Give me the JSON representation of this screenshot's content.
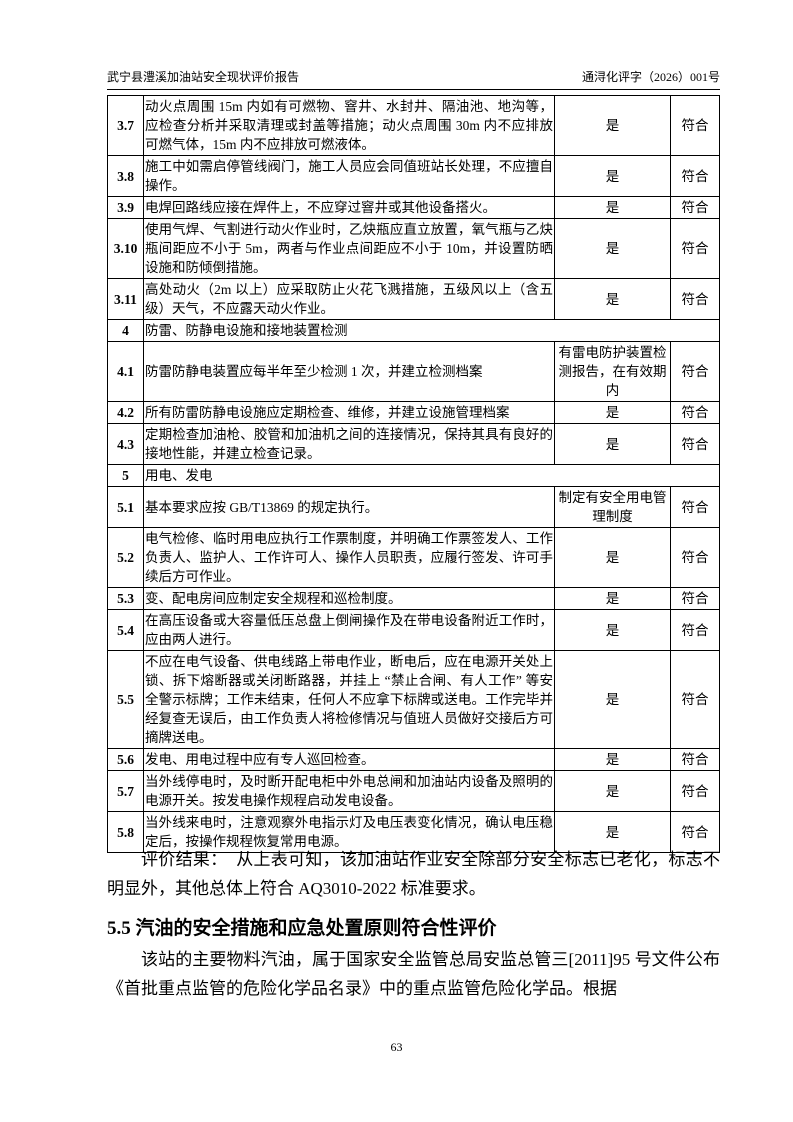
{
  "header": {
    "left": "武宁县澧溪加油站安全现状评价报告",
    "right": "通浔化评字（2026）001号"
  },
  "table": {
    "rows": [
      {
        "no": "3.7",
        "content": "动火点周围 15m 内如有可燃物、窨井、水封井、隔油池、地沟等，应检查分析并采取清理或封盖等措施；动火点周围 30m 内不应排放可燃气体，15m 内不应排放可燃液体。",
        "result": "是",
        "conclusion": "符合"
      },
      {
        "no": "3.8",
        "content": "施工中如需启停管线阀门，施工人员应会同值班站长处理，不应擅自操作。",
        "result": "是",
        "conclusion": "符合"
      },
      {
        "no": "3.9",
        "content": "电焊回路线应接在焊件上，不应穿过窨井或其他设备搭火。",
        "result": "是",
        "conclusion": "符合"
      },
      {
        "no": "3.10",
        "content": "使用气焊、气割进行动火作业时，乙炔瓶应直立放置，氧气瓶与乙炔瓶间距应不小于 5m，两者与作业点间距应不小于 10m，并设置防晒设施和防倾倒措施。",
        "result": "是",
        "conclusion": "符合"
      },
      {
        "no": "3.11",
        "content": "高处动火（2m 以上）应采取防止火花飞溅措施，五级风以上（含五级）天气，不应露天动火作业。",
        "result": "是",
        "conclusion": "符合"
      },
      {
        "no": "4",
        "content": "防雷、防静电设施和接地装置检测"
      },
      {
        "no": "4.1",
        "content": "防雷防静电装置应每半年至少检测 1 次，并建立检测档案",
        "result": "有雷电防护装置检测报告，在有效期内",
        "conclusion": "符合"
      },
      {
        "no": "4.2",
        "content": "所有防雷防静电设施应定期检查、维修，并建立设施管理档案",
        "result": "是",
        "conclusion": "符合"
      },
      {
        "no": "4.3",
        "content": "定期检查加油枪、胶管和加油机之间的连接情况，保持其具有良好的接地性能，并建立检查记录。",
        "result": "是",
        "conclusion": "符合"
      },
      {
        "no": "5",
        "content": "用电、发电"
      },
      {
        "no": "5.1",
        "content": "基本要求应按 GB/T13869 的规定执行。",
        "result": "制定有安全用电管理制度",
        "conclusion": "符合"
      },
      {
        "no": "5.2",
        "content": "电气检修、临时用电应执行工作票制度，并明确工作票签发人、工作负责人、监护人、工作许可人、操作人员职责，应履行签发、许可手续后方可作业。",
        "result": "是",
        "conclusion": "符合"
      },
      {
        "no": "5.3",
        "content": "变、配电房间应制定安全规程和巡检制度。",
        "result": "是",
        "conclusion": "符合"
      },
      {
        "no": "5.4",
        "content": "在高压设备或大容量低压总盘上倒闸操作及在带电设备附近工作时，应由两人进行。",
        "result": "是",
        "conclusion": "符合"
      },
      {
        "no": "5.5",
        "content": "不应在电气设备、供电线路上带电作业，断电后，应在电源开关处上锁、拆下熔断器或关闭断路器，并挂上 “禁止合闸、有人工作” 等安全警示标牌；工作未结束，任何人不应拿下标牌或送电。工作完毕并经复查无误后，由工作负责人将检修情况与值班人员做好交接后方可摘牌送电。",
        "result": "是",
        "conclusion": "符合"
      },
      {
        "no": "5.6",
        "content": "发电、用电过程中应有专人巡回检查。",
        "result": "是",
        "conclusion": "符合"
      },
      {
        "no": "5.7",
        "content": "当外线停电时，及时断开配电柜中外电总闸和加油站内设备及照明的电源开关。按发电操作规程启动发电设备。",
        "result": "是",
        "conclusion": "符合"
      },
      {
        "no": "5.8",
        "content": "当外线来电时，注意观察外电指示灯及电压表变化情况，确认电压稳定后，按操作规程恢复常用电源。",
        "result": "是",
        "conclusion": "符合"
      }
    ]
  },
  "paragraphs": [
    "评价结果：　从上表可知，该加油站作业安全除部分安全标志已老化，标志不明显外，其他总体上符合 AQ3010-2022 标准要求。"
  ],
  "section": {
    "title": "5.5 汽油的安全措施和应急处置原则符合性评价",
    "paragraphs": [
      "该站的主要物料汽油，属于国家安全监管总局安监总管三[2011]95 号文件公布《首批重点监管的危险化学品名录》中的重点监管危险化学品。根据"
    ]
  },
  "footer": {
    "page": "63"
  }
}
